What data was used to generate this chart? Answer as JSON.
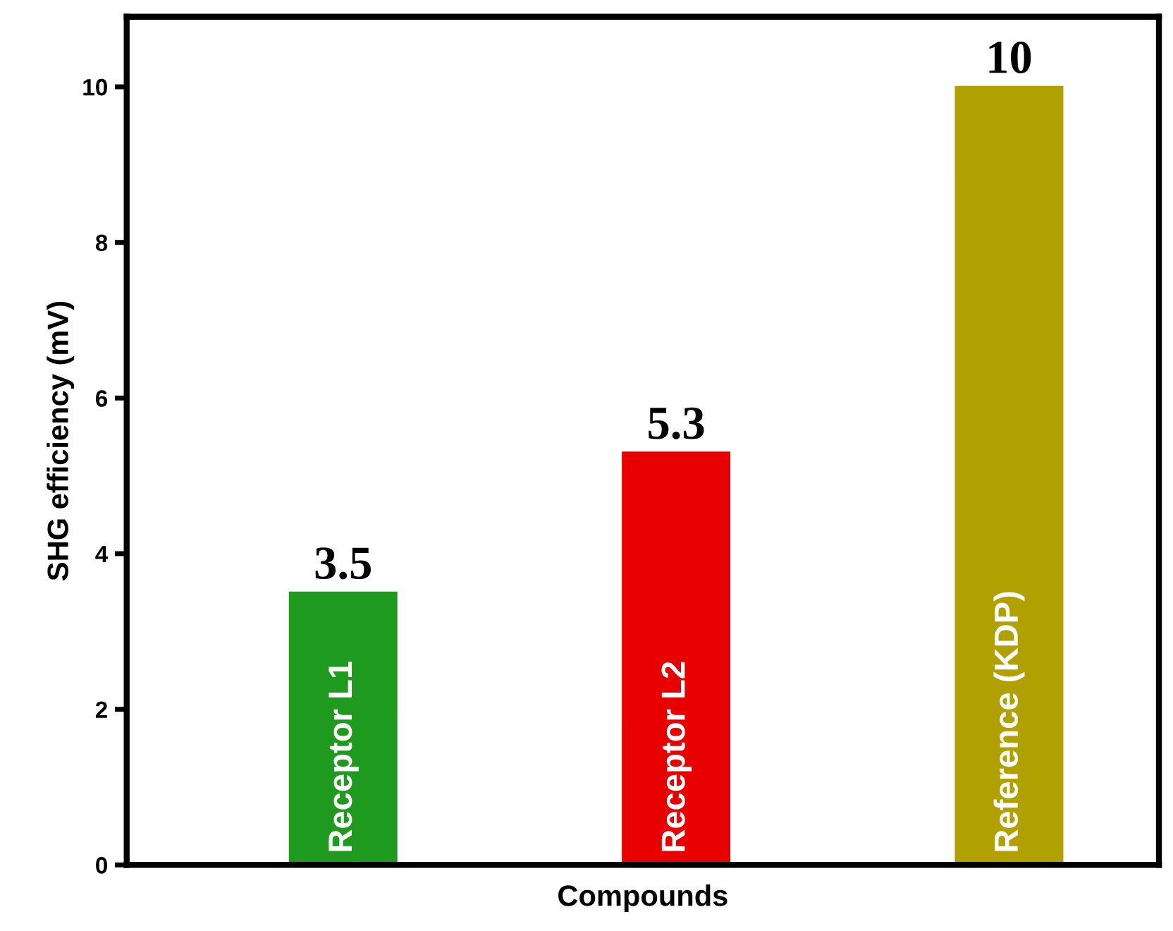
{
  "chart_data": {
    "type": "bar",
    "xlabel": "Compounds",
    "ylabel": "SHG efficiency (mV)",
    "categories": [
      "Receptor L1",
      "Receptor L2",
      "Reference (KDP)"
    ],
    "values": [
      3.5,
      5.3,
      10
    ],
    "colors": [
      "#1e9a1e",
      "#e80000",
      "#b0a000"
    ],
    "ylim": [
      0,
      10.9
    ],
    "yticks": [
      0,
      2,
      4,
      6,
      8,
      10
    ],
    "data_labels": true,
    "grid": false,
    "legend": false,
    "tick_labels": "y"
  }
}
